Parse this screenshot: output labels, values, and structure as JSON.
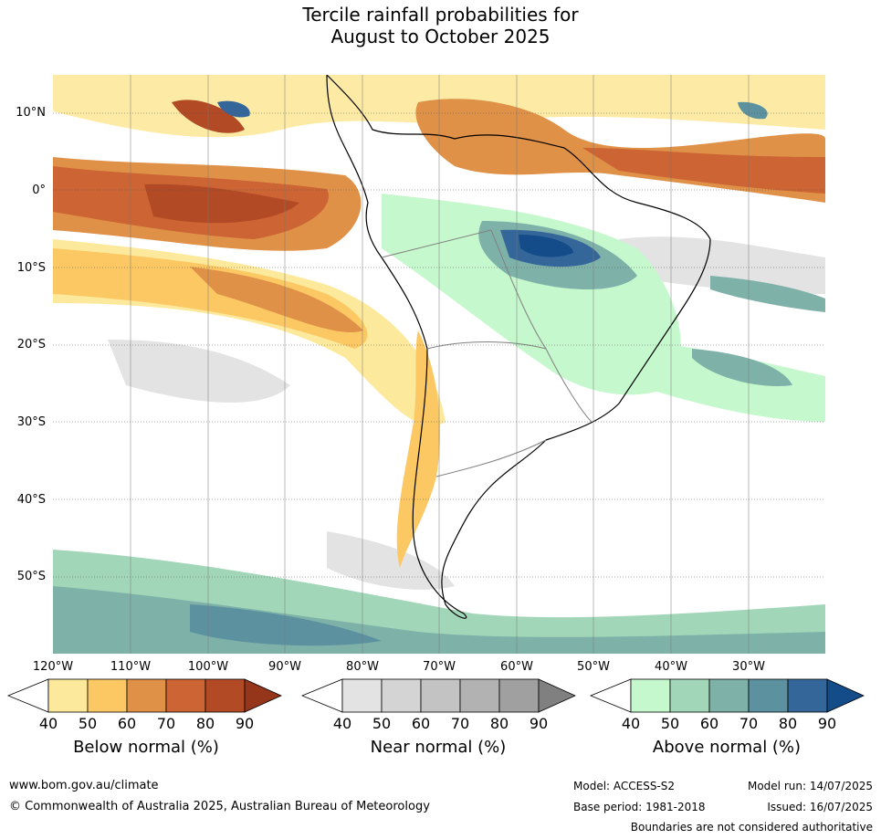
{
  "title": {
    "line1": "Tercile rainfall probabilities for",
    "line2": "August to October 2025"
  },
  "latitude_labels": [
    "10°N",
    "0°",
    "10°S",
    "20°S",
    "30°S",
    "40°S",
    "50°S"
  ],
  "longitude_labels": [
    "120°W",
    "110°W",
    "100°W",
    "90°W",
    "80°W",
    "70°W",
    "60°W",
    "50°W",
    "40°W",
    "30°W"
  ],
  "colorbars": [
    {
      "title": "Below normal (%)",
      "ticks": [
        "40",
        "50",
        "60",
        "70",
        "80",
        "90"
      ],
      "colors": [
        "#ffffff",
        "#fde99b",
        "#fcc864",
        "#e09148",
        "#cd6433",
        "#b24a26",
        "#953519"
      ]
    },
    {
      "title": "Near normal (%)",
      "ticks": [
        "40",
        "50",
        "60",
        "70",
        "80",
        "90"
      ],
      "colors": [
        "#ffffff",
        "#e3e3e3",
        "#d4d4d4",
        "#c3c3c3",
        "#b2b2b2",
        "#a0a0a0",
        "#808080"
      ]
    },
    {
      "title": "Above normal (%)",
      "ticks": [
        "40",
        "50",
        "60",
        "70",
        "80",
        "90"
      ],
      "colors": [
        "#ffffff",
        "#c6f8cd",
        "#a2d6b8",
        "#7eb2a9",
        "#5c92a0",
        "#35669a",
        "#144c8a"
      ]
    }
  ],
  "footer": {
    "website": "www.bom.gov.au/climate",
    "copyright": "© Commonwealth of Australia 2025, Australian Bureau of Meteorology",
    "model": "Model: ACCESS-S2",
    "base_period": "Base period: 1981-2018",
    "model_run": "Model run: 14/07/2025",
    "issued": "Issued: 16/07/2025",
    "disclaimer": "Boundaries are not considered authoritative"
  }
}
